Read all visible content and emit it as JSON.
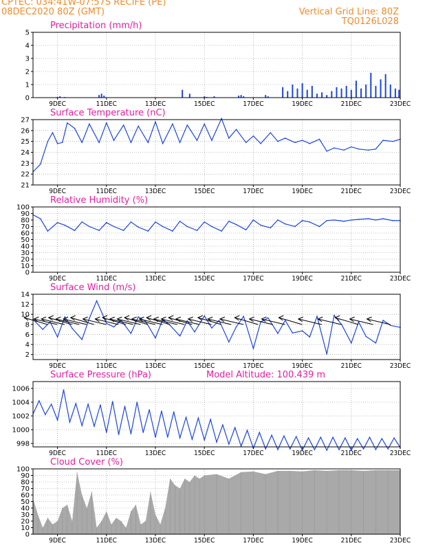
{
  "header": {
    "line1": "CPTEC:   034:41W-07:57S   RECIFE (PE)",
    "line2": "08DEC2020 80Z (GMT)",
    "grid_note": "Vertical Grid Line: 80Z",
    "code": "TQ0126L028"
  },
  "colors": {
    "header": "#f08a2a",
    "title": "#e020a0",
    "series": "#1a44e0",
    "cloud": "#a9a9a9"
  },
  "x_labels": [
    "9DEC",
    "11DEC",
    "13DEC",
    "15DEC",
    "17DEC",
    "19DEC",
    "21DEC",
    "23DEC"
  ],
  "chart_data": [
    {
      "type": "bar",
      "title": "Precipitation (mm/h)",
      "x_unit": "days from 08DEC2020 00Z",
      "ylim": [
        0,
        5
      ],
      "yticks": [
        0,
        1,
        2,
        3,
        4,
        5
      ],
      "x": [
        1.0,
        1.1,
        1.3,
        2.7,
        2.8,
        2.9,
        6.1,
        6.4,
        7.0,
        7.1,
        7.4,
        8.4,
        8.5,
        8.6,
        9.5,
        9.6,
        10.2,
        10.4,
        10.6,
        10.8,
        11.0,
        11.2,
        11.4,
        11.6,
        11.8,
        12.0,
        12.2,
        12.4,
        12.6,
        12.8,
        13.0,
        13.2,
        13.4,
        13.6,
        13.8,
        14.0,
        14.2,
        14.4,
        14.6,
        14.8,
        14.95
      ],
      "values": [
        0.05,
        0.1,
        0.05,
        0.2,
        0.3,
        0.15,
        0.6,
        0.3,
        0.1,
        0.05,
        0.1,
        0.15,
        0.2,
        0.1,
        0.2,
        0.1,
        0.8,
        0.5,
        1.0,
        0.7,
        1.1,
        0.6,
        0.9,
        0.3,
        0.4,
        0.2,
        0.5,
        0.8,
        0.7,
        0.9,
        0.6,
        1.3,
        0.7,
        1.0,
        1.9,
        0.9,
        1.4,
        1.8,
        1.0,
        0.7,
        0.6
      ]
    },
    {
      "type": "line",
      "title": "Surface Temperature (nC)",
      "x_unit": "days from 08DEC2020 00Z",
      "ylim": [
        21,
        27
      ],
      "yticks": [
        21,
        22,
        23,
        24,
        25,
        26,
        27
      ],
      "x": [
        0,
        0.3,
        0.6,
        0.8,
        1.0,
        1.2,
        1.4,
        1.7,
        2.0,
        2.3,
        2.7,
        3.0,
        3.3,
        3.7,
        4.0,
        4.3,
        4.7,
        5.0,
        5.3,
        5.7,
        6.0,
        6.3,
        6.7,
        7.0,
        7.3,
        7.7,
        8.0,
        8.3,
        8.7,
        9.0,
        9.3,
        9.7,
        10.0,
        10.3,
        10.7,
        11.0,
        11.3,
        11.7,
        12.0,
        12.3,
        12.7,
        13.0,
        13.3,
        13.7,
        14.0,
        14.3,
        14.7,
        15.0
      ],
      "values": [
        22.2,
        22.9,
        25.0,
        25.8,
        24.8,
        24.9,
        26.7,
        26.2,
        24.9,
        26.6,
        24.9,
        26.7,
        25.1,
        26.5,
        24.9,
        26.4,
        24.9,
        26.8,
        24.8,
        26.6,
        24.9,
        26.5,
        25.1,
        26.6,
        25.1,
        27.1,
        25.3,
        26.1,
        24.9,
        25.5,
        24.8,
        25.8,
        25.0,
        25.3,
        24.9,
        25.1,
        24.8,
        25.2,
        24.1,
        24.4,
        24.2,
        24.5,
        24.3,
        24.2,
        24.3,
        25.1,
        25.0,
        25.2
      ]
    },
    {
      "type": "line",
      "title": "Relative Humidity (%)",
      "x_unit": "days from 08DEC2020 00Z",
      "ylim": [
        0,
        100
      ],
      "yticks": [
        0,
        10,
        20,
        30,
        40,
        50,
        60,
        70,
        80,
        90,
        100
      ],
      "x": [
        0,
        0.3,
        0.6,
        1.0,
        1.3,
        1.7,
        2.0,
        2.3,
        2.7,
        3.0,
        3.3,
        3.7,
        4.0,
        4.3,
        4.7,
        5.0,
        5.3,
        5.7,
        6.0,
        6.3,
        6.7,
        7.0,
        7.3,
        7.7,
        8.0,
        8.3,
        8.7,
        9.0,
        9.3,
        9.7,
        10.0,
        10.3,
        10.7,
        11.0,
        11.3,
        11.7,
        12.0,
        12.3,
        12.7,
        13.0,
        13.3,
        13.7,
        14.0,
        14.3,
        14.7,
        15.0
      ],
      "values": [
        88,
        82,
        63,
        76,
        72,
        64,
        77,
        70,
        64,
        76,
        70,
        64,
        77,
        69,
        63,
        77,
        70,
        63,
        78,
        70,
        64,
        77,
        70,
        63,
        78,
        73,
        65,
        80,
        72,
        68,
        80,
        74,
        70,
        79,
        77,
        70,
        79,
        80,
        78,
        80,
        81,
        82,
        80,
        82,
        79,
        79
      ]
    },
    {
      "type": "line",
      "title": "Surface Wind (m/s)",
      "x_unit": "days from 08DEC2020 00Z",
      "ylim": [
        1,
        14
      ],
      "yticks": [
        2,
        4,
        6,
        8,
        10,
        12,
        14
      ],
      "x": [
        0,
        0.4,
        0.7,
        1.0,
        1.3,
        1.6,
        2.0,
        2.3,
        2.6,
        3.0,
        3.3,
        3.6,
        4.0,
        4.3,
        4.6,
        5.0,
        5.3,
        5.6,
        6.0,
        6.3,
        6.6,
        7.0,
        7.3,
        7.6,
        8.0,
        8.3,
        8.6,
        9.0,
        9.3,
        9.6,
        10.0,
        10.3,
        10.6,
        11.0,
        11.3,
        11.6,
        12.0,
        12.3,
        12.6,
        13.0,
        13.3,
        13.6,
        14.0,
        14.3,
        14.6,
        15.0
      ],
      "values": [
        9.0,
        7.0,
        8.5,
        5.5,
        9.5,
        7.2,
        5.0,
        9.2,
        12.7,
        8.2,
        7.5,
        8.8,
        6.2,
        9.5,
        8.6,
        5.3,
        9.0,
        7.8,
        5.7,
        8.7,
        6.5,
        9.7,
        7.3,
        8.8,
        4.5,
        7.5,
        9.6,
        3.2,
        8.5,
        9.3,
        6.2,
        8.8,
        6.3,
        6.7,
        5.5,
        9.6,
        2.1,
        9.8,
        8.0,
        4.3,
        8.5,
        5.6,
        4.3,
        8.8,
        7.8,
        7.4
      ],
      "arrows_x": [
        0.2,
        0.6,
        0.9,
        1.2,
        1.5,
        1.8,
        2.1,
        2.6,
        3.1,
        3.4,
        3.7,
        4.0,
        4.3,
        4.6,
        4.9,
        5.2,
        5.5,
        5.8,
        6.1,
        6.4,
        6.9,
        7.3,
        7.7,
        8.2,
        8.8,
        9.4,
        9.9,
        10.6,
        11.4,
        12.2,
        12.9,
        13.5,
        14.2
      ]
    },
    {
      "type": "line",
      "title": "Surface Pressure (hPa)",
      "annotation": "Model Altitude: 100.439  m",
      "x_unit": "days from 08DEC2020 00Z",
      "ylim": [
        997.5,
        1007
      ],
      "yticks": [
        998,
        1000,
        1002,
        1004,
        1006
      ],
      "x": [
        0,
        0.25,
        0.5,
        0.75,
        1.0,
        1.25,
        1.5,
        1.75,
        2.0,
        2.25,
        2.5,
        2.75,
        3.0,
        3.25,
        3.5,
        3.75,
        4.0,
        4.25,
        4.5,
        4.75,
        5.0,
        5.25,
        5.5,
        5.75,
        6.0,
        6.25,
        6.5,
        6.75,
        7.0,
        7.25,
        7.5,
        7.75,
        8.0,
        8.25,
        8.5,
        8.75,
        9.0,
        9.25,
        9.5,
        9.75,
        10.0,
        10.25,
        10.5,
        10.75,
        11.0,
        11.25,
        11.5,
        11.75,
        12.0,
        12.25,
        12.5,
        12.75,
        13.0,
        13.25,
        13.5,
        13.75,
        14.0,
        14.25,
        14.5,
        14.75,
        15.0
      ],
      "values": [
        1002.3,
        1004.2,
        1002.2,
        1003.7,
        1001.4,
        1005.8,
        1001.1,
        1003.8,
        1000.6,
        1003.7,
        1000.5,
        1003.6,
        999.6,
        1004.1,
        999.3,
        1003.4,
        999.4,
        1004.0,
        999.6,
        1002.9,
        998.9,
        1002.7,
        998.9,
        1002.6,
        998.8,
        1001.8,
        998.6,
        1001.7,
        998.5,
        1001.5,
        998.2,
        1000.7,
        997.9,
        1000.3,
        997.6,
        999.9,
        997.3,
        999.6,
        997.2,
        999.2,
        997.1,
        999.1,
        997.2,
        999.0,
        997.0,
        998.8,
        997.1,
        998.9,
        997.0,
        998.9,
        997.1,
        998.8,
        997.0,
        998.7,
        997.2,
        998.9,
        997.1,
        998.7,
        997.2,
        998.8,
        997.4
      ]
    },
    {
      "type": "area",
      "title": "Cloud Cover (%)",
      "x_unit": "days from 08DEC2020 00Z",
      "ylim": [
        0,
        100
      ],
      "yticks": [
        0,
        10,
        20,
        30,
        40,
        50,
        60,
        70,
        80,
        90,
        100
      ],
      "x": [
        0,
        0.2,
        0.4,
        0.6,
        0.8,
        1.0,
        1.2,
        1.4,
        1.6,
        1.8,
        2.0,
        2.2,
        2.4,
        2.6,
        2.8,
        3.0,
        3.2,
        3.4,
        3.6,
        3.8,
        4.0,
        4.2,
        4.4,
        4.6,
        4.8,
        5.0,
        5.2,
        5.4,
        5.6,
        5.8,
        6.0,
        6.2,
        6.4,
        6.6,
        6.8,
        7.0,
        7.5,
        8.0,
        8.5,
        9.0,
        9.5,
        10.0,
        10.5,
        11.0,
        11.5,
        12.0,
        12.5,
        13.0,
        13.5,
        14.0,
        14.5,
        15.0
      ],
      "values": [
        55,
        30,
        10,
        25,
        15,
        20,
        40,
        45,
        20,
        95,
        60,
        40,
        65,
        10,
        20,
        35,
        15,
        25,
        20,
        10,
        35,
        45,
        15,
        20,
        65,
        30,
        15,
        40,
        85,
        75,
        70,
        85,
        80,
        90,
        85,
        90,
        92,
        85,
        95,
        96,
        92,
        97,
        97,
        96,
        98,
        97,
        98,
        98,
        97,
        98,
        98,
        98
      ]
    }
  ]
}
